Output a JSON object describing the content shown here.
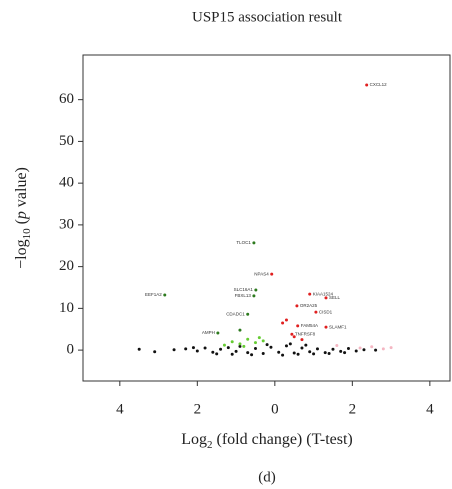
{
  "chart_data": {
    "type": "scatter",
    "title": "USP15 association result",
    "y_label": [
      "−log",
      "10",
      " (",
      "p",
      " value)"
    ],
    "x_label": [
      "Log",
      "2",
      " (fold change) (T-test)"
    ],
    "caption": "(d)",
    "xlim": [
      -4.95,
      4.52
    ],
    "ylim": [
      -7.4,
      70.7
    ],
    "xticks": [
      {
        "value": -4,
        "label": "4"
      },
      {
        "value": -2,
        "label": "2"
      },
      0,
      2,
      4
    ],
    "yticks": [
      0,
      10,
      20,
      30,
      40,
      50,
      60
    ],
    "series": [
      {
        "color": "#111111",
        "x": [
          -3.5,
          -3.1,
          -2.6,
          -2.3,
          -2.0,
          -1.8,
          -1.6,
          -1.4,
          -1.2,
          -1.0,
          -0.9,
          -0.7,
          -0.5,
          -0.3,
          -0.1,
          0.1,
          0.3,
          0.5,
          0.7,
          0.9,
          1.1,
          1.3,
          1.5,
          1.7,
          1.9,
          2.1,
          2.3,
          2.6,
          -1.5,
          -1.1,
          -0.6,
          0.2,
          0.6,
          1.0,
          1.4,
          1.8,
          -2.1,
          -0.2,
          0.4,
          0.8
        ],
        "values": [
          0.2,
          -0.4,
          0.1,
          0.3,
          -0.2,
          0.5,
          -0.5,
          0.2,
          0.6,
          -0.3,
          0.9,
          -0.6,
          0.4,
          -0.8,
          0.7,
          -0.5,
          1.0,
          -0.7,
          0.5,
          -0.4,
          0.3,
          -0.6,
          0.2,
          -0.3,
          0.4,
          -0.2,
          0.1,
          0.0,
          -0.9,
          -1.0,
          -1.1,
          -1.2,
          -1.0,
          -0.9,
          -0.8,
          -0.6,
          0.6,
          1.3,
          1.5,
          1.2
        ]
      },
      {
        "color": "#f4b6c2",
        "x": [
          2.2,
          2.5,
          2.8,
          3.0,
          1.6
        ],
        "values": [
          0.5,
          0.8,
          0.3,
          0.6,
          1.1
        ]
      },
      {
        "color": "#66cc33",
        "x": [
          -1.3,
          -1.1,
          -0.9,
          -0.7,
          -0.5,
          -0.3,
          -0.8,
          -0.4
        ],
        "values": [
          1.2,
          2.0,
          1.5,
          2.6,
          1.8,
          2.2,
          0.9,
          3.0
        ]
      },
      {
        "color": "#e02020",
        "x": [
          2.37,
          -0.08,
          0.9,
          1.32,
          0.57,
          1.06,
          1.32,
          0.59,
          0.44,
          0.3,
          0.5,
          0.7,
          0.2
        ],
        "values": [
          63.5,
          18.2,
          13.4,
          12.5,
          10.6,
          9.1,
          5.5,
          5.8,
          3.8,
          7.2,
          3.2,
          2.5,
          6.5
        ],
        "labels": [
          "CXCL12",
          "NPAS4",
          "KIAA1524",
          "SELL",
          "OR2A25",
          "CISD1",
          "SLAMF1",
          "FAM54A",
          "TNFRSF8",
          null,
          null,
          null,
          null
        ]
      },
      {
        "color": "#2d7a1e",
        "x": [
          -0.54,
          -2.84,
          -0.49,
          -0.54,
          -0.7,
          -1.47,
          -0.9
        ],
        "values": [
          25.7,
          13.2,
          14.4,
          13.0,
          8.6,
          4.1,
          4.8
        ],
        "labels": [
          "TLOC1",
          "EEF1A2",
          "SLC16A1",
          "FBXL13",
          "CDADC1",
          "AMPH",
          null
        ]
      }
    ]
  }
}
